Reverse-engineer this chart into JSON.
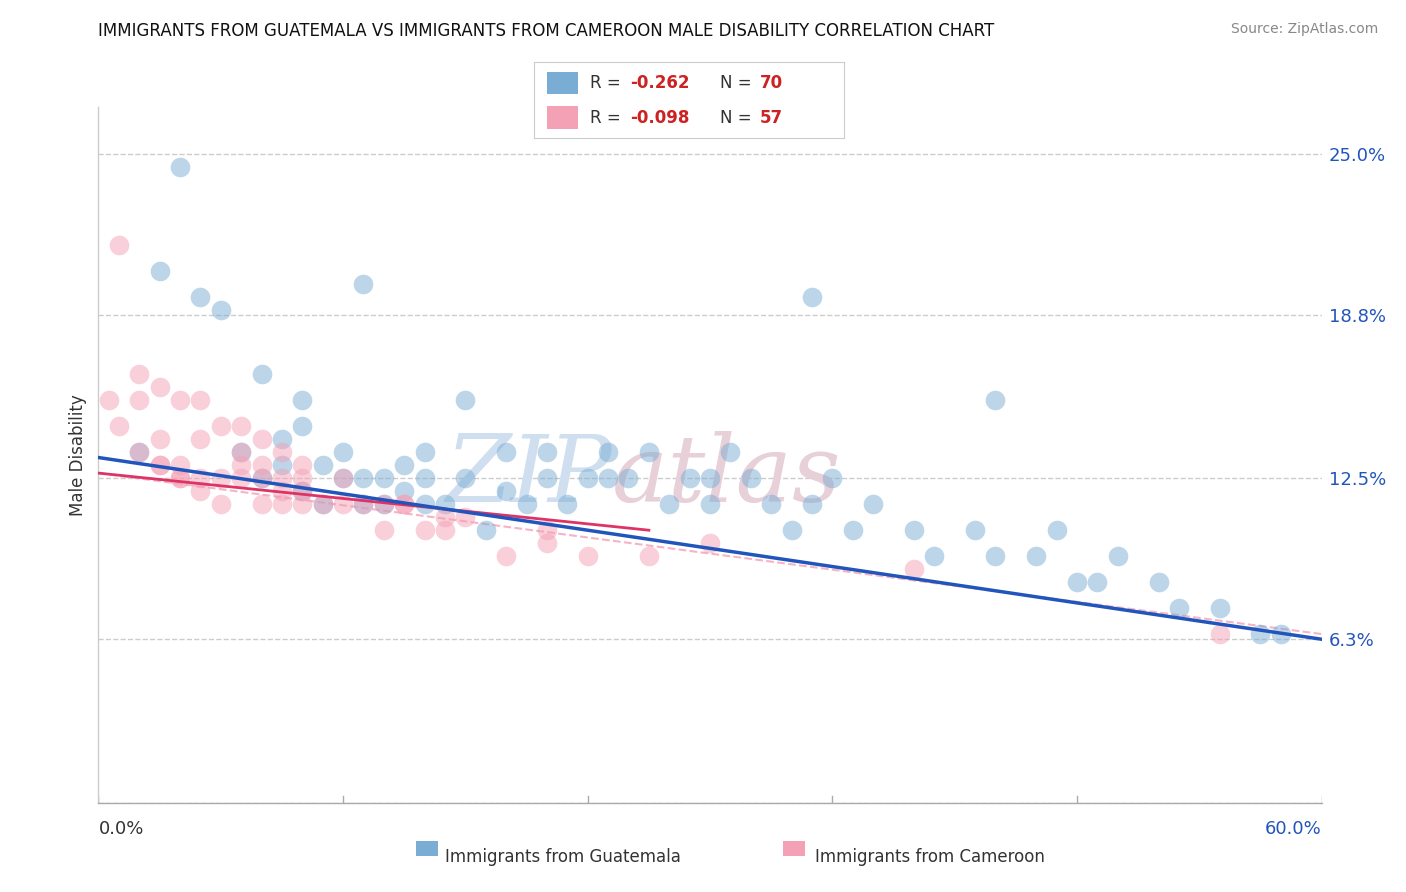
{
  "title": "IMMIGRANTS FROM GUATEMALA VS IMMIGRANTS FROM CAMEROON MALE DISABILITY CORRELATION CHART",
  "source": "Source: ZipAtlas.com",
  "ylabel": "Male Disability",
  "yticks": [
    0.0,
    0.063,
    0.125,
    0.188,
    0.25
  ],
  "ytick_labels": [
    "",
    "6.3%",
    "12.5%",
    "18.8%",
    "25.0%"
  ],
  "xlim": [
    0.0,
    0.6
  ],
  "ylim": [
    0.0,
    0.268
  ],
  "legend_blue_R": "-0.262",
  "legend_blue_N": "70",
  "legend_pink_R": "-0.098",
  "legend_pink_N": "57",
  "color_blue": "#7aadd4",
  "color_pink": "#f4a0b5",
  "color_blue_line": "#2255bb",
  "color_pink_line": "#dd3366",
  "color_dashed": "#f4a0b5",
  "watermark_color": "#d0dff0",
  "watermark_color2": "#e8d0d8",
  "guatemala_x": [
    0.02,
    0.04,
    0.05,
    0.07,
    0.08,
    0.09,
    0.09,
    0.1,
    0.1,
    0.11,
    0.11,
    0.12,
    0.12,
    0.13,
    0.13,
    0.14,
    0.14,
    0.15,
    0.15,
    0.16,
    0.16,
    0.17,
    0.18,
    0.19,
    0.2,
    0.21,
    0.22,
    0.22,
    0.23,
    0.24,
    0.25,
    0.26,
    0.27,
    0.28,
    0.29,
    0.3,
    0.3,
    0.31,
    0.32,
    0.33,
    0.34,
    0.35,
    0.36,
    0.37,
    0.38,
    0.4,
    0.41,
    0.43,
    0.44,
    0.46,
    0.47,
    0.48,
    0.49,
    0.5,
    0.52,
    0.53,
    0.55,
    0.57,
    0.08,
    0.13,
    0.18,
    0.2,
    0.35,
    0.44,
    0.58,
    0.03,
    0.06,
    0.1,
    0.16,
    0.25
  ],
  "guatemala_y": [
    0.135,
    0.245,
    0.195,
    0.135,
    0.125,
    0.13,
    0.14,
    0.145,
    0.12,
    0.13,
    0.115,
    0.125,
    0.135,
    0.125,
    0.115,
    0.125,
    0.115,
    0.13,
    0.12,
    0.115,
    0.125,
    0.115,
    0.125,
    0.105,
    0.12,
    0.115,
    0.125,
    0.135,
    0.115,
    0.125,
    0.125,
    0.125,
    0.135,
    0.115,
    0.125,
    0.115,
    0.125,
    0.135,
    0.125,
    0.115,
    0.105,
    0.115,
    0.125,
    0.105,
    0.115,
    0.105,
    0.095,
    0.105,
    0.095,
    0.095,
    0.105,
    0.085,
    0.085,
    0.095,
    0.085,
    0.075,
    0.075,
    0.065,
    0.165,
    0.2,
    0.155,
    0.135,
    0.195,
    0.155,
    0.065,
    0.205,
    0.19,
    0.155,
    0.135,
    0.135
  ],
  "cameroon_x": [
    0.01,
    0.01,
    0.02,
    0.02,
    0.03,
    0.03,
    0.03,
    0.04,
    0.04,
    0.04,
    0.05,
    0.05,
    0.05,
    0.06,
    0.06,
    0.07,
    0.07,
    0.07,
    0.08,
    0.08,
    0.08,
    0.09,
    0.09,
    0.09,
    0.1,
    0.1,
    0.1,
    0.11,
    0.12,
    0.13,
    0.14,
    0.15,
    0.15,
    0.16,
    0.17,
    0.18,
    0.2,
    0.22,
    0.24,
    0.27,
    0.02,
    0.03,
    0.04,
    0.05,
    0.06,
    0.07,
    0.08,
    0.09,
    0.1,
    0.12,
    0.14,
    0.17,
    0.22,
    0.3,
    0.4,
    0.55,
    0.005
  ],
  "cameroon_y": [
    0.215,
    0.145,
    0.135,
    0.155,
    0.13,
    0.14,
    0.13,
    0.125,
    0.13,
    0.125,
    0.125,
    0.14,
    0.12,
    0.115,
    0.125,
    0.125,
    0.135,
    0.13,
    0.115,
    0.125,
    0.13,
    0.125,
    0.115,
    0.12,
    0.115,
    0.125,
    0.12,
    0.115,
    0.115,
    0.115,
    0.105,
    0.115,
    0.115,
    0.105,
    0.105,
    0.11,
    0.095,
    0.1,
    0.095,
    0.095,
    0.165,
    0.16,
    0.155,
    0.155,
    0.145,
    0.145,
    0.14,
    0.135,
    0.13,
    0.125,
    0.115,
    0.11,
    0.105,
    0.1,
    0.09,
    0.065,
    0.155
  ],
  "blue_line_x": [
    0.0,
    0.6
  ],
  "blue_line_y": [
    0.133,
    0.063
  ],
  "pink_line_x": [
    0.0,
    0.27
  ],
  "pink_line_y": [
    0.127,
    0.105
  ],
  "dashed_line_x": [
    0.0,
    0.6
  ],
  "dashed_line_y": [
    0.127,
    0.065
  ]
}
